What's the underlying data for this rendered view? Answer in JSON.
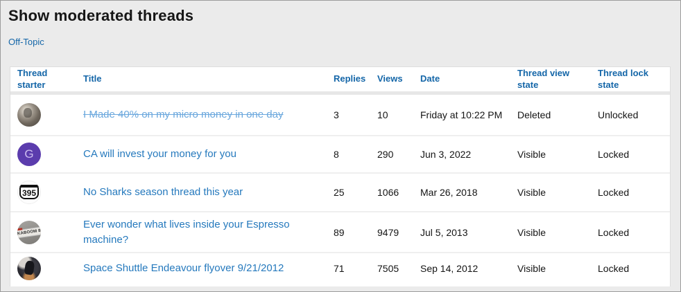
{
  "page": {
    "title": "Show moderated threads",
    "forum_link": "Off-Topic"
  },
  "colors": {
    "page_background": "#ebebeb",
    "table_background": "#ffffff",
    "header_link_blue": "#1466a8",
    "thread_link_blue": "#2579bd",
    "deleted_thread_link_blue": "#6aa7dd",
    "body_text": "#141414",
    "avatar_purple": "#5b3cad"
  },
  "table": {
    "columns": [
      {
        "label": "Thread starter"
      },
      {
        "label": "Title"
      },
      {
        "label": "Replies"
      },
      {
        "label": "Views"
      },
      {
        "label": "Date"
      },
      {
        "label": "Thread view state"
      },
      {
        "label": "Thread lock state"
      }
    ],
    "rows": [
      {
        "avatar_icon": "user-photo-avatar",
        "title": "I Made 40% on my micro money in one day",
        "deleted": true,
        "replies": "3",
        "views": "10",
        "date": "Friday at 10:22 PM",
        "view_state": "Deleted",
        "lock_state": "Unlocked"
      },
      {
        "avatar_icon": "letter-g-avatar",
        "avatar_text": "G",
        "title": "CA will invest your money for you",
        "deleted": false,
        "replies": "8",
        "views": "290",
        "date": "Jun 3, 2022",
        "view_state": "Visible",
        "lock_state": "Locked"
      },
      {
        "avatar_icon": "route-395-shield-avatar",
        "avatar_text": "395",
        "title": "No Sharks season thread this year",
        "deleted": false,
        "replies": "25",
        "views": "1066",
        "date": "Mar 26, 2018",
        "view_state": "Visible",
        "lock_state": "Locked"
      },
      {
        "avatar_icon": "kaboom-8-license-plate-avatar",
        "avatar_text": "KABOOM 8",
        "title": "Ever wonder what lives inside your Espresso machine?",
        "deleted": false,
        "replies": "89",
        "views": "9479",
        "date": "Jul 5, 2013",
        "view_state": "Visible",
        "lock_state": "Locked"
      },
      {
        "avatar_icon": "dark-photo-avatar",
        "title": "Space Shuttle Endeavour flyover 9/21/2012",
        "deleted": false,
        "replies": "71",
        "views": "7505",
        "date": "Sep 14, 2012",
        "view_state": "Visible",
        "lock_state": "Locked"
      }
    ]
  }
}
